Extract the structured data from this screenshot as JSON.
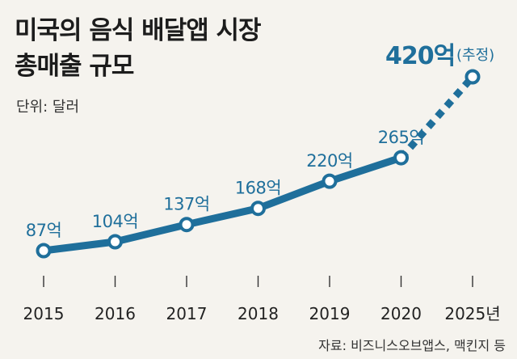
{
  "chart_data": {
    "type": "line",
    "title": [
      "미국의 음식 배달앱 시장",
      "총매출 규모"
    ],
    "unit_label": "단위: 달러",
    "source": "자료: 비즈니스오브앱스, 맥킨지 등",
    "categories": [
      "2015",
      "2016",
      "2017",
      "2018",
      "2019",
      "2020",
      "2025년"
    ],
    "values": [
      87,
      104,
      137,
      168,
      220,
      265,
      420
    ],
    "value_labels": [
      "87억",
      "104억",
      "137억",
      "168억",
      "220억",
      "265억",
      "420억"
    ],
    "estimate_note": "(추정)",
    "estimated_index": 6,
    "value_unit": "억 달러",
    "line_color": "#1f6f9b",
    "background_color": "#f5f3ee"
  }
}
